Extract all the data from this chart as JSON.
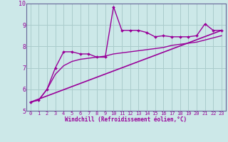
{
  "xlabel": "Windchill (Refroidissement éolien,°C)",
  "bg_color": "#cce8e8",
  "grid_color": "#aacccc",
  "line_color": "#990099",
  "border_color": "#666699",
  "xlim": [
    -0.5,
    23.5
  ],
  "ylim": [
    5,
    10
  ],
  "xticks": [
    0,
    1,
    2,
    3,
    4,
    5,
    6,
    7,
    8,
    9,
    10,
    11,
    12,
    13,
    14,
    15,
    16,
    17,
    18,
    19,
    20,
    21,
    22,
    23
  ],
  "yticks": [
    5,
    6,
    7,
    8,
    9,
    10
  ],
  "curve1_x": [
    0,
    1,
    2,
    3,
    4,
    5,
    6,
    7,
    8,
    9,
    10,
    11,
    12,
    13,
    14,
    15,
    16,
    17,
    18,
    19,
    20,
    21,
    22,
    23
  ],
  "curve1_y": [
    5.4,
    5.5,
    6.0,
    7.0,
    7.75,
    7.75,
    7.65,
    7.65,
    7.5,
    7.5,
    9.85,
    8.75,
    8.75,
    8.75,
    8.65,
    8.45,
    8.5,
    8.45,
    8.45,
    8.45,
    8.5,
    9.05,
    8.75,
    8.75
  ],
  "curve2_x": [
    0,
    1,
    2,
    3,
    4,
    5,
    6,
    7,
    8,
    9,
    10,
    11,
    12,
    13,
    14,
    15,
    16,
    17,
    18,
    19,
    20,
    21,
    22,
    23
  ],
  "curve2_y": [
    5.4,
    5.5,
    6.0,
    6.7,
    7.1,
    7.3,
    7.4,
    7.45,
    7.5,
    7.55,
    7.65,
    7.7,
    7.75,
    7.8,
    7.85,
    7.9,
    7.95,
    8.05,
    8.1,
    8.15,
    8.2,
    8.3,
    8.4,
    8.5
  ],
  "line3_x": [
    0,
    23
  ],
  "line3_y": [
    5.4,
    8.75
  ]
}
